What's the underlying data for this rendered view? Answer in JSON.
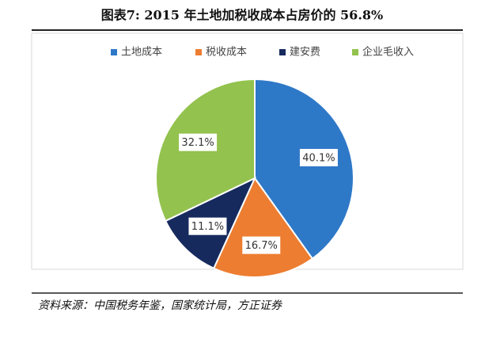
{
  "chart_data": {
    "type": "pie",
    "title": "图表7:  2015 年土地加税收成本占房价的 56.8%",
    "categories": [
      "土地成本",
      "税收成本",
      "建安费",
      "企业毛收入"
    ],
    "values": [
      40.1,
      16.7,
      11.1,
      32.1
    ],
    "value_labels": [
      "40.1%",
      "16.7%",
      "11.1%",
      "32.1%"
    ],
    "colors": [
      "#2e78c8",
      "#ed7d31",
      "#162a5e",
      "#93c24e"
    ],
    "legend": "top",
    "source": "资料来源：中国税务年鉴，国家统计局，方正证券"
  }
}
